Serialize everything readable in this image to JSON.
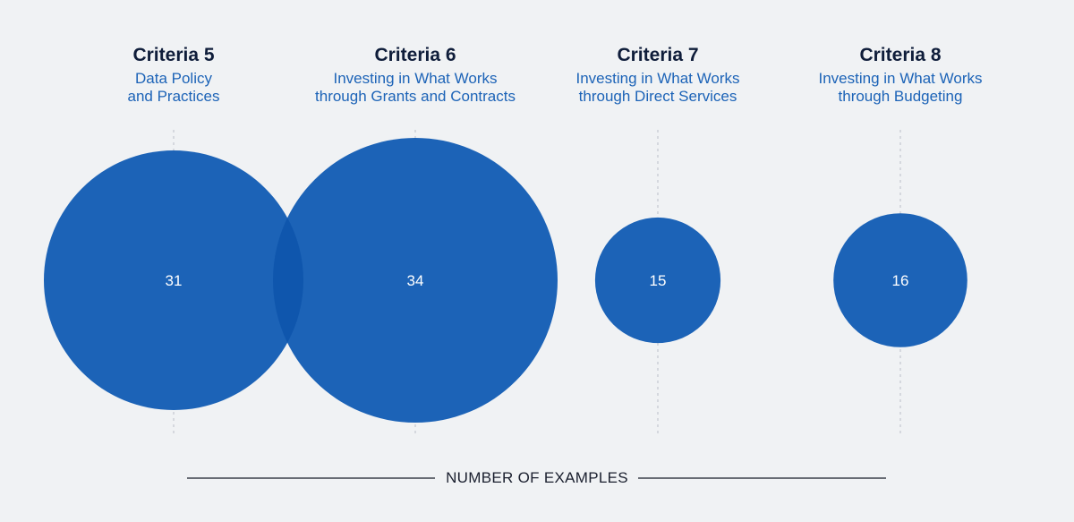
{
  "chart_data": {
    "type": "bubble",
    "categories": [
      {
        "title": "Criteria 5",
        "subtitle": [
          "Data Policy",
          "and Practices"
        ]
      },
      {
        "title": "Criteria 6",
        "subtitle": [
          "Investing in What Works",
          "through Grants and Contracts"
        ]
      },
      {
        "title": "Criteria 7",
        "subtitle": [
          "Investing in What Works",
          "through Direct Services"
        ]
      },
      {
        "title": "Criteria 8",
        "subtitle": [
          "Investing in What Works",
          "through Budgeting"
        ]
      }
    ],
    "values": [
      31,
      34,
      15,
      16
    ],
    "xlabel": "NUMBER OF EXAMPLES",
    "bubble_color": "#1c63b7",
    "overlap_color": "#0f56ad",
    "title_color": "#0f1d3a",
    "subtitle_color": "#1c63b7",
    "guide_line_color": "#c3c8cf",
    "axis_line_color": "#3a3f4a"
  }
}
